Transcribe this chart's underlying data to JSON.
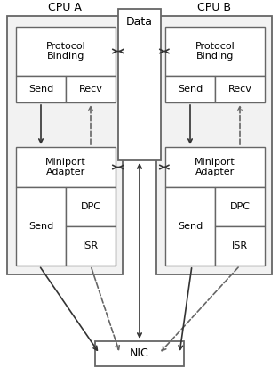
{
  "title_cpu_a": "CPU A",
  "title_cpu_b": "CPU B",
  "label_data": "Data",
  "label_nic": "NIC",
  "label_proto": "Protocol\nBinding",
  "label_send": "Send",
  "label_recv": "Recv",
  "label_miniport": "Miniport\nAdapter",
  "label_dpc": "DPC",
  "label_isr": "ISR",
  "face_outer": "#f2f2f2",
  "face_inner": "#e8e8e8",
  "face_white": "#ffffff",
  "edge_color": "#666666",
  "arrow_solid": "#333333",
  "arrow_dash": "#666666"
}
